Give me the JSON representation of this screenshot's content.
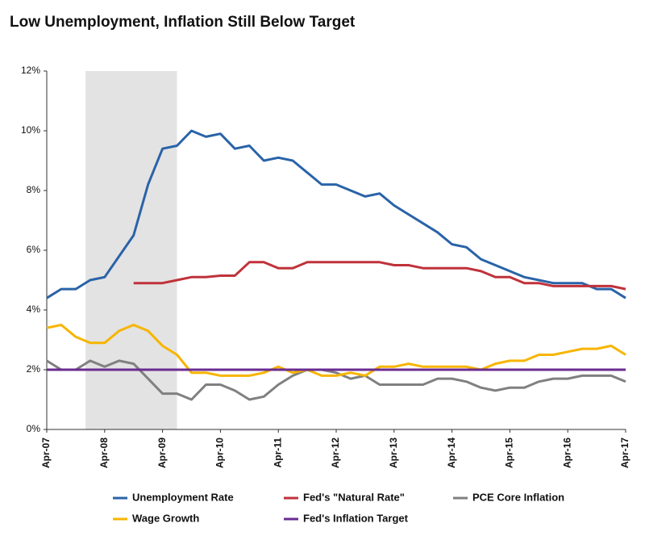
{
  "chart_data": {
    "type": "line",
    "title": "Low Unemployment, Inflation Still Below Target",
    "x": [
      2007.25,
      2007.5,
      2007.75,
      2008.0,
      2008.25,
      2008.5,
      2008.75,
      2009.0,
      2009.25,
      2009.5,
      2009.75,
      2010.0,
      2010.25,
      2010.5,
      2010.75,
      2011.0,
      2011.25,
      2011.5,
      2011.75,
      2012.0,
      2012.25,
      2012.5,
      2012.75,
      2013.0,
      2013.25,
      2013.5,
      2013.75,
      2014.0,
      2014.25,
      2014.5,
      2014.75,
      2015.0,
      2015.25,
      2015.5,
      2015.75,
      2016.0,
      2016.25,
      2016.5,
      2016.75,
      2017.0,
      2017.25
    ],
    "series": [
      {
        "name": "Unemployment Rate",
        "color": "#2a63a8",
        "values": [
          4.4,
          4.7,
          4.7,
          5.0,
          5.1,
          5.8,
          6.5,
          8.2,
          9.4,
          9.5,
          10.0,
          9.8,
          9.9,
          9.4,
          9.5,
          9.0,
          9.1,
          9.0,
          8.6,
          8.2,
          8.2,
          8.0,
          7.8,
          7.9,
          7.5,
          7.2,
          6.9,
          6.6,
          6.2,
          6.1,
          5.7,
          5.5,
          5.3,
          5.1,
          5.0,
          4.9,
          4.9,
          4.9,
          4.7,
          4.7,
          4.4
        ]
      },
      {
        "name": "Fed's \"Natural Rate\"",
        "color": "#c0323a",
        "values": [
          null,
          null,
          null,
          null,
          null,
          null,
          4.9,
          4.9,
          4.9,
          5.0,
          5.1,
          5.1,
          5.15,
          5.15,
          5.6,
          5.6,
          5.4,
          5.4,
          5.6,
          5.6,
          5.6,
          5.6,
          5.6,
          5.6,
          5.5,
          5.5,
          5.4,
          5.4,
          5.4,
          5.4,
          5.3,
          5.1,
          5.1,
          4.9,
          4.9,
          4.8,
          4.8,
          4.8,
          4.8,
          4.8,
          4.7
        ]
      },
      {
        "name": "PCE Core Inflation",
        "color": "#808080",
        "values": [
          2.3,
          2.0,
          2.0,
          2.3,
          2.1,
          2.3,
          2.2,
          1.7,
          1.2,
          1.2,
          1.0,
          1.5,
          1.5,
          1.3,
          1.0,
          1.1,
          1.5,
          1.8,
          2.0,
          2.0,
          1.9,
          1.7,
          1.8,
          1.5,
          1.5,
          1.5,
          1.5,
          1.7,
          1.7,
          1.6,
          1.4,
          1.3,
          1.4,
          1.4,
          1.6,
          1.7,
          1.7,
          1.8,
          1.8,
          1.8,
          1.6
        ]
      },
      {
        "name": "Wage Growth",
        "color": "#f7b500",
        "values": [
          3.4,
          3.5,
          3.1,
          2.9,
          2.9,
          3.3,
          3.5,
          3.3,
          2.8,
          2.5,
          1.9,
          1.9,
          1.8,
          1.8,
          1.8,
          1.9,
          2.1,
          1.9,
          2.0,
          1.8,
          1.8,
          1.9,
          1.8,
          2.1,
          2.1,
          2.2,
          2.1,
          2.1,
          2.1,
          2.1,
          2.0,
          2.2,
          2.3,
          2.3,
          2.5,
          2.5,
          2.6,
          2.7,
          2.7,
          2.8,
          2.5
        ]
      },
      {
        "name": "Fed's Inflation Target",
        "color": "#6a2c91",
        "values": [
          2,
          2,
          2,
          2,
          2,
          2,
          2,
          2,
          2,
          2,
          2,
          2,
          2,
          2,
          2,
          2,
          2,
          2,
          2,
          2,
          2,
          2,
          2,
          2,
          2,
          2,
          2,
          2,
          2,
          2,
          2,
          2,
          2,
          2,
          2,
          2,
          2,
          2,
          2,
          2,
          2
        ]
      }
    ],
    "shaded_range": [
      2007.92,
      2009.5
    ],
    "xlim": [
      2007.25,
      2017.25
    ],
    "xticks": [
      {
        "value": 2007.25,
        "label": "Apr-07"
      },
      {
        "value": 2008.25,
        "label": "Apr-08"
      },
      {
        "value": 2009.25,
        "label": "Apr-09"
      },
      {
        "value": 2010.25,
        "label": "Apr-10"
      },
      {
        "value": 2011.25,
        "label": "Apr-11"
      },
      {
        "value": 2012.25,
        "label": "Apr-12"
      },
      {
        "value": 2013.25,
        "label": "Apr-13"
      },
      {
        "value": 2014.25,
        "label": "Apr-14"
      },
      {
        "value": 2015.25,
        "label": "Apr-15"
      },
      {
        "value": 2016.25,
        "label": "Apr-16"
      },
      {
        "value": 2017.25,
        "label": "Apr-17"
      }
    ],
    "ylim": [
      0,
      12
    ],
    "yticks": [
      {
        "value": 0,
        "label": "0%"
      },
      {
        "value": 2,
        "label": "2%"
      },
      {
        "value": 4,
        "label": "4%"
      },
      {
        "value": 6,
        "label": "6%"
      },
      {
        "value": 8,
        "label": "8%"
      },
      {
        "value": 10,
        "label": "10%"
      },
      {
        "value": 12,
        "label": "12%"
      }
    ],
    "grid": false
  }
}
